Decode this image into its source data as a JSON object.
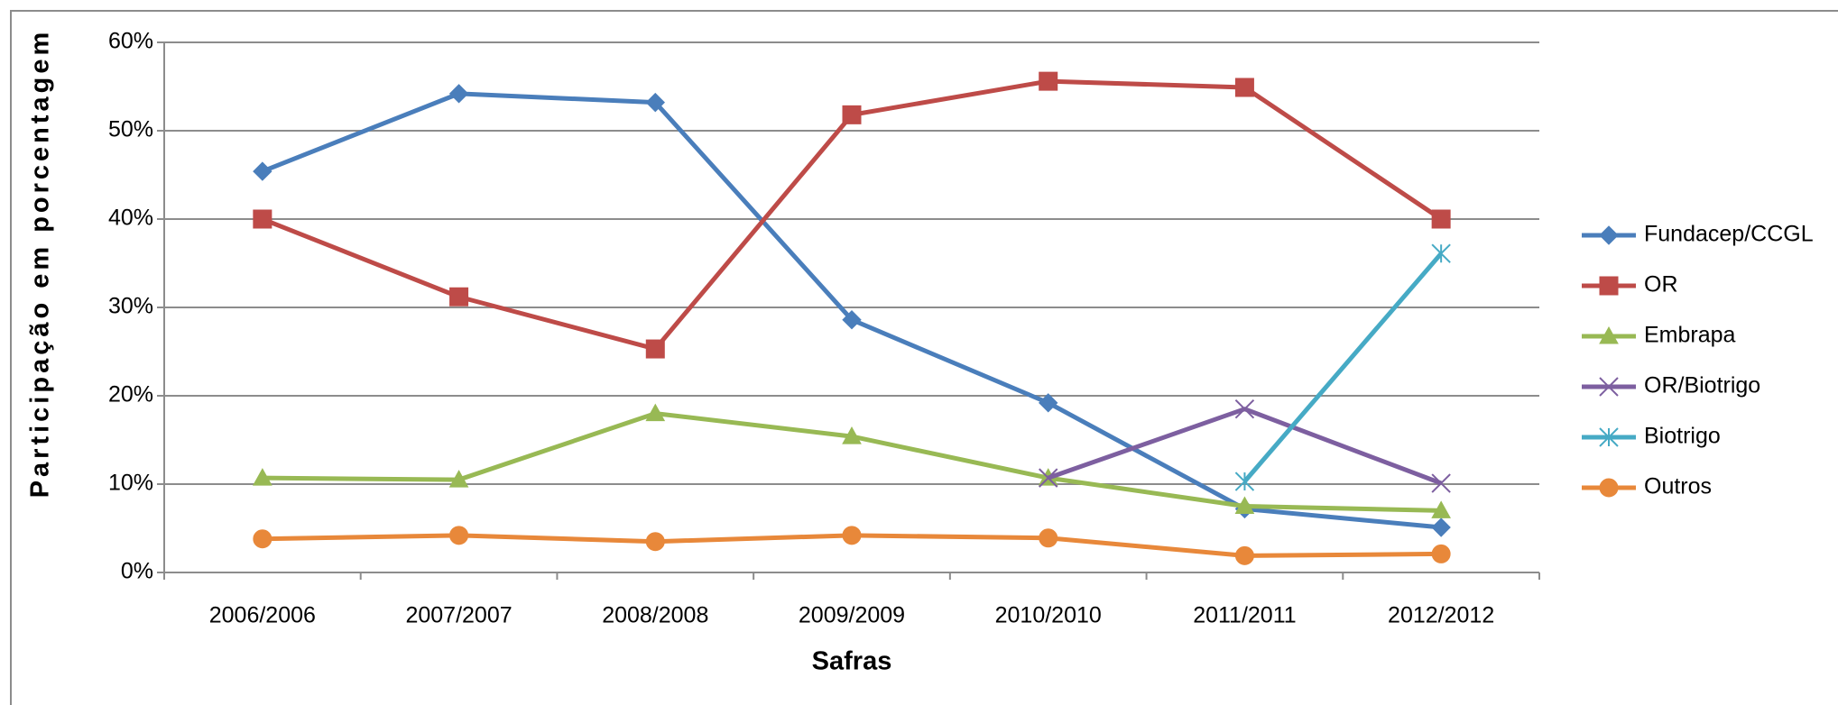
{
  "chart_data": {
    "type": "line",
    "x_label": "Safras",
    "y_label": "Participação em porcentagem",
    "categories": [
      "2006/2006",
      "2007/2007",
      "2008/2008",
      "2009/2009",
      "2010/2010",
      "2011/2011",
      "2012/2012"
    ],
    "series": [
      {
        "name": "Fundacep/CCGL",
        "color": "#4a7ebb",
        "marker": "diamond",
        "values": [
          45.4,
          54.2,
          53.2,
          28.6,
          19.2,
          7.2,
          5.1
        ]
      },
      {
        "name": "OR",
        "color": "#be4b48",
        "marker": "square",
        "values": [
          40.0,
          31.2,
          25.3,
          51.8,
          55.6,
          54.9,
          40.0
        ]
      },
      {
        "name": "Embrapa",
        "color": "#98b954",
        "marker": "triangle",
        "values": [
          10.7,
          10.5,
          18.0,
          15.4,
          10.7,
          7.5,
          7.0
        ]
      },
      {
        "name": "OR/Biotrigo",
        "color": "#7d5fa0",
        "marker": "x",
        "values": [
          null,
          null,
          null,
          null,
          10.7,
          18.5,
          10.1
        ]
      },
      {
        "name": "Biotrigo",
        "color": "#46aac5",
        "marker": "star",
        "values": [
          null,
          null,
          null,
          null,
          null,
          10.3,
          36.1
        ]
      },
      {
        "name": "Outros",
        "color": "#e8883a",
        "marker": "circle",
        "values": [
          3.8,
          4.2,
          3.5,
          4.2,
          3.9,
          1.9,
          2.1
        ]
      }
    ],
    "ylim": [
      0,
      60
    ],
    "yticks": [
      {
        "value": 0,
        "label": "0%"
      },
      {
        "value": 10,
        "label": "10%"
      },
      {
        "value": 20,
        "label": "20%"
      },
      {
        "value": 30,
        "label": "30%"
      },
      {
        "value": 40,
        "label": "40%"
      },
      {
        "value": 50,
        "label": "50%"
      },
      {
        "value": 60,
        "label": "60%"
      }
    ],
    "grid": true,
    "legend": "right"
  }
}
